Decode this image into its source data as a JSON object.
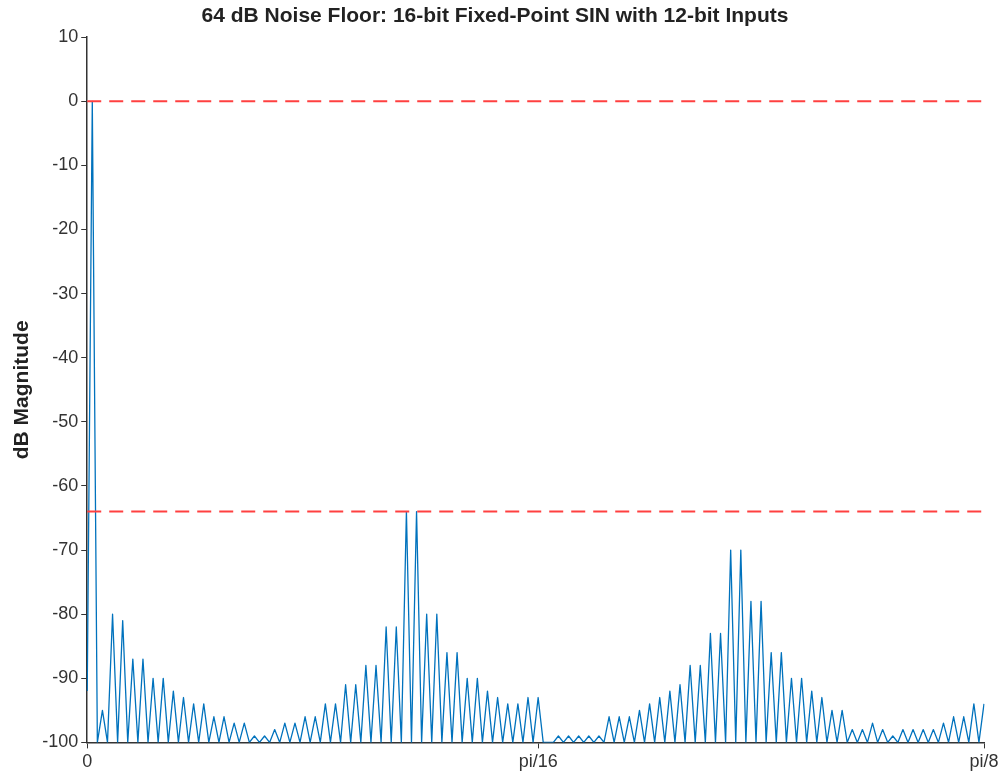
{
  "chart_data": {
    "type": "line",
    "title": "64 dB Noise Floor: 16-bit Fixed-Point SIN with 12-bit Inputs",
    "ylabel": "dB Magnitude",
    "categories": [
      "0",
      null,
      null,
      null,
      null,
      null,
      null,
      null,
      null,
      null,
      null,
      null,
      null,
      null,
      null,
      null,
      null,
      null,
      null,
      null,
      null,
      null,
      null,
      null,
      null,
      null,
      null,
      null,
      null,
      null,
      null,
      null,
      null,
      null,
      null,
      null,
      null,
      null,
      null,
      null,
      null,
      null,
      null,
      null,
      null,
      null,
      null,
      null,
      null,
      null,
      null,
      null,
      null,
      null,
      null,
      null,
      null,
      null,
      null,
      null,
      null,
      null,
      null,
      null,
      null,
      null,
      null,
      null,
      null,
      null,
      null,
      null,
      null,
      null,
      null,
      null,
      null,
      null,
      null,
      null,
      null,
      null,
      null,
      null,
      null,
      null,
      null,
      null,
      null,
      "pi/16",
      null,
      null,
      null,
      null,
      null,
      null,
      null,
      null,
      null,
      null,
      null,
      null,
      null,
      null,
      null,
      null,
      null,
      null,
      null,
      null,
      null,
      null,
      null,
      null,
      null,
      null,
      null,
      null,
      null,
      null,
      null,
      null,
      null,
      null,
      null,
      null,
      null,
      null,
      null,
      null,
      null,
      null,
      null,
      null,
      null,
      null,
      null,
      null,
      null,
      null,
      null,
      null,
      null,
      null,
      null,
      null,
      null,
      null,
      null,
      null,
      null,
      null,
      null,
      null,
      null,
      null,
      null,
      null,
      null,
      null,
      null,
      null,
      null,
      null,
      null,
      null,
      null,
      null,
      null,
      null,
      null,
      null,
      null,
      null,
      null,
      null,
      null,
      "pi/8"
    ],
    "ylim": [
      -100,
      10
    ],
    "yticks": [
      -100,
      -90,
      -80,
      -70,
      -60,
      -50,
      -40,
      -30,
      -20,
      -10,
      0,
      10
    ],
    "grid": false,
    "legend": false,
    "marker": "none",
    "line_style": "solid",
    "ref_lines": [
      {
        "axis": "y",
        "value": 0,
        "color": "#ff4040",
        "line_style": "dashed"
      },
      {
        "axis": "y",
        "value": -64,
        "color": "#ff4040",
        "line_style": "dashed"
      }
    ],
    "series": [
      {
        "color": "#0072bd",
        "values": [
          -92,
          0,
          -100,
          -95,
          -100,
          -80,
          -100,
          -81,
          -100,
          -87,
          -100,
          -87,
          -100,
          -90,
          -100,
          -90,
          -100,
          -92,
          -100,
          -93,
          -100,
          -94,
          -100,
          -94,
          -100,
          -96,
          -100,
          -96,
          -100,
          -97,
          -100,
          -97,
          -100,
          -99,
          -100,
          -99,
          -100,
          -98,
          -100,
          -97,
          -100,
          -97,
          -100,
          -96,
          -100,
          -96,
          -100,
          -94,
          -100,
          -94,
          -100,
          -91,
          -100,
          -91,
          -100,
          -88,
          -100,
          -88,
          -100,
          -82,
          -100,
          -82,
          -100,
          -64,
          -100,
          -64,
          -100,
          -80,
          -100,
          -80,
          -100,
          -86,
          -100,
          -86,
          -100,
          -90,
          -100,
          -90,
          -100,
          -92,
          -100,
          -93,
          -100,
          -94,
          -100,
          -94,
          -100,
          -93,
          -100,
          -93,
          -100,
          -100,
          -100,
          -99,
          -100,
          -99,
          -100,
          -99,
          -100,
          -99,
          -100,
          -99,
          -100,
          -96,
          -100,
          -96,
          -100,
          -96,
          -100,
          -95,
          -100,
          -94,
          -100,
          -93,
          -100,
          -92,
          -100,
          -91,
          -100,
          -88,
          -100,
          -88,
          -100,
          -83,
          -100,
          -83,
          -100,
          -70,
          -100,
          -70,
          -100,
          -78,
          -100,
          -78,
          -100,
          -86,
          -100,
          -86,
          -100,
          -90,
          -100,
          -90,
          -100,
          -92,
          -100,
          -93,
          -100,
          -95,
          -100,
          -95,
          -100,
          -98,
          -100,
          -98,
          -100,
          -97,
          -100,
          -98,
          -100,
          -99,
          -100,
          -98,
          -100,
          -98,
          -100,
          -98,
          -100,
          -98,
          -100,
          -97,
          -100,
          -96,
          -100,
          -96,
          -100,
          -94,
          -100,
          -94
        ]
      }
    ]
  }
}
